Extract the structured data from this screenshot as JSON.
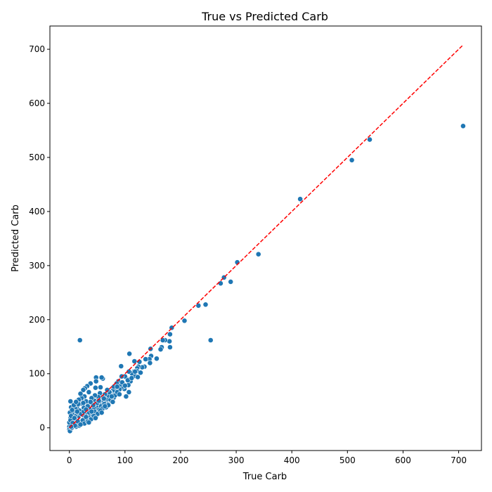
{
  "chart_data": {
    "type": "scatter",
    "title": "True vs Predicted Carb",
    "xlabel": "True Carb",
    "ylabel": "Predicted Carb",
    "xlim": [
      -35,
      741
    ],
    "ylim": [
      -42,
      743
    ],
    "xticks": [
      0,
      100,
      200,
      300,
      400,
      500,
      600,
      700
    ],
    "yticks": [
      0,
      100,
      200,
      300,
      400,
      500,
      600,
      700
    ],
    "grid": false,
    "legend": "none",
    "point_color": "#1f77b4",
    "point_edge_color": "#ffffff",
    "reference_line": {
      "from": [
        0,
        0
      ],
      "to": [
        708,
        708
      ],
      "color": "#ff0000",
      "style": "dashed"
    },
    "series": [
      {
        "points": [
          [
            708,
            558
          ],
          [
            540,
            533
          ],
          [
            508,
            495
          ],
          [
            415,
            423
          ],
          [
            340,
            321
          ],
          [
            302,
            306
          ],
          [
            290,
            270
          ],
          [
            278,
            278
          ],
          [
            272,
            267
          ],
          [
            245,
            228
          ],
          [
            232,
            226
          ],
          [
            254,
            162
          ],
          [
            207,
            198
          ],
          [
            184,
            185
          ],
          [
            181,
            173
          ],
          [
            180,
            160
          ],
          [
            181,
            149
          ],
          [
            172,
            162
          ],
          [
            168,
            162
          ],
          [
            166,
            149
          ],
          [
            164,
            145
          ],
          [
            157,
            128
          ],
          [
            147,
            133
          ],
          [
            146,
            146
          ],
          [
            144,
            127
          ],
          [
            145,
            120
          ],
          [
            137,
            127
          ],
          [
            135,
            113
          ],
          [
            131,
            112
          ],
          [
            126,
            122
          ],
          [
            124,
            113
          ],
          [
            122,
            110
          ],
          [
            121,
            105
          ],
          [
            118,
            96
          ],
          [
            117,
            123
          ],
          [
            116,
            104
          ],
          [
            112,
            101
          ],
          [
            110,
            86
          ],
          [
            108,
            137
          ],
          [
            107,
            104
          ],
          [
            107,
            66
          ],
          [
            106,
            79
          ],
          [
            104,
            90
          ],
          [
            102,
            58
          ],
          [
            100,
            95
          ],
          [
            99,
            72
          ],
          [
            96,
            76
          ],
          [
            94,
            95
          ],
          [
            93,
            114
          ],
          [
            91,
            80
          ],
          [
            90,
            71
          ],
          [
            88,
            86
          ],
          [
            85,
            82
          ],
          [
            84,
            74
          ],
          [
            82,
            64
          ],
          [
            80,
            56
          ],
          [
            78,
            69
          ],
          [
            77,
            60
          ],
          [
            75,
            55
          ],
          [
            73,
            66
          ],
          [
            71,
            58
          ],
          [
            70,
            48
          ],
          [
            68,
            44
          ],
          [
            66,
            52
          ],
          [
            64,
            62
          ],
          [
            62,
            49
          ],
          [
            60,
            91
          ],
          [
            58,
            93
          ],
          [
            60,
            57
          ],
          [
            56,
            75
          ],
          [
            55,
            64
          ],
          [
            54,
            44
          ],
          [
            52,
            57
          ],
          [
            50,
            37
          ],
          [
            48,
            93
          ],
          [
            48,
            86
          ],
          [
            47,
            74
          ],
          [
            46,
            60
          ],
          [
            45,
            50
          ],
          [
            44,
            38
          ],
          [
            42,
            30
          ],
          [
            40,
            55
          ],
          [
            39,
            46
          ],
          [
            38,
            82
          ],
          [
            37,
            20
          ],
          [
            36,
            35
          ],
          [
            35,
            66
          ],
          [
            34,
            42
          ],
          [
            32,
            77
          ],
          [
            31,
            28
          ],
          [
            30,
            49
          ],
          [
            29,
            18
          ],
          [
            28,
            73
          ],
          [
            27,
            58
          ],
          [
            26,
            37
          ],
          [
            25,
            70
          ],
          [
            24,
            24
          ],
          [
            23,
            11
          ],
          [
            22,
            55
          ],
          [
            21,
            45
          ],
          [
            20,
            63
          ],
          [
            19,
            162
          ],
          [
            18,
            32
          ],
          [
            17,
            52
          ],
          [
            16,
            20
          ],
          [
            15,
            5
          ],
          [
            14,
            40
          ],
          [
            13,
            27
          ],
          [
            12,
            14
          ],
          [
            11,
            35
          ],
          [
            10,
            22
          ],
          [
            9,
            8
          ],
          [
            8,
            30
          ],
          [
            7,
            16
          ],
          [
            6,
            4
          ],
          [
            5,
            25
          ],
          [
            4,
            12
          ],
          [
            3,
            38
          ],
          [
            2,
            49
          ],
          [
            2,
            18
          ],
          [
            1,
            6
          ],
          [
            1,
            28
          ],
          [
            0,
            2
          ],
          [
            0,
            10
          ],
          [
            0,
            -3
          ],
          [
            1,
            -6
          ],
          [
            2,
            14
          ],
          [
            3,
            22
          ],
          [
            4,
            0
          ],
          [
            6,
            9
          ],
          [
            9,
            18
          ],
          [
            12,
            2
          ],
          [
            15,
            12
          ],
          [
            18,
            4
          ],
          [
            21,
            26
          ],
          [
            24,
            14
          ],
          [
            27,
            8
          ],
          [
            30,
            20
          ],
          [
            33,
            12
          ],
          [
            36,
            28
          ],
          [
            39,
            16
          ],
          [
            42,
            24
          ],
          [
            45,
            30
          ],
          [
            48,
            20
          ],
          [
            51,
            26
          ],
          [
            54,
            34
          ],
          [
            57,
            40
          ],
          [
            60,
            36
          ],
          [
            63,
            44
          ],
          [
            66,
            38
          ],
          [
            70,
            42
          ],
          [
            74,
            52
          ],
          [
            78,
            48
          ],
          [
            82,
            60
          ],
          [
            86,
            66
          ],
          [
            90,
            62
          ],
          [
            95,
            84
          ],
          [
            100,
            78
          ],
          [
            105,
            88
          ],
          [
            112,
            92
          ],
          [
            118,
            104
          ],
          [
            123,
            94
          ],
          [
            128,
            102
          ],
          [
            40,
            30
          ],
          [
            44,
            22
          ],
          [
            50,
            46
          ],
          [
            56,
            32
          ],
          [
            62,
            54
          ],
          [
            20,
            6
          ],
          [
            26,
            30
          ],
          [
            33,
            40
          ],
          [
            14,
            30
          ],
          [
            10,
            4
          ],
          [
            8,
            42
          ],
          [
            5,
            33
          ],
          [
            3,
            2
          ],
          [
            25,
            46
          ],
          [
            35,
            10
          ],
          [
            43,
            42
          ],
          [
            53,
            50
          ],
          [
            64,
            40
          ],
          [
            72,
            66
          ],
          [
            80,
            76
          ],
          [
            58,
            28
          ],
          [
            47,
            18
          ],
          [
            38,
            48
          ],
          [
            30,
            34
          ],
          [
            16,
            44
          ],
          [
            12,
            48
          ],
          [
            68,
            70
          ],
          [
            76,
            58
          ],
          [
            86,
            76
          ]
        ]
      }
    ]
  }
}
